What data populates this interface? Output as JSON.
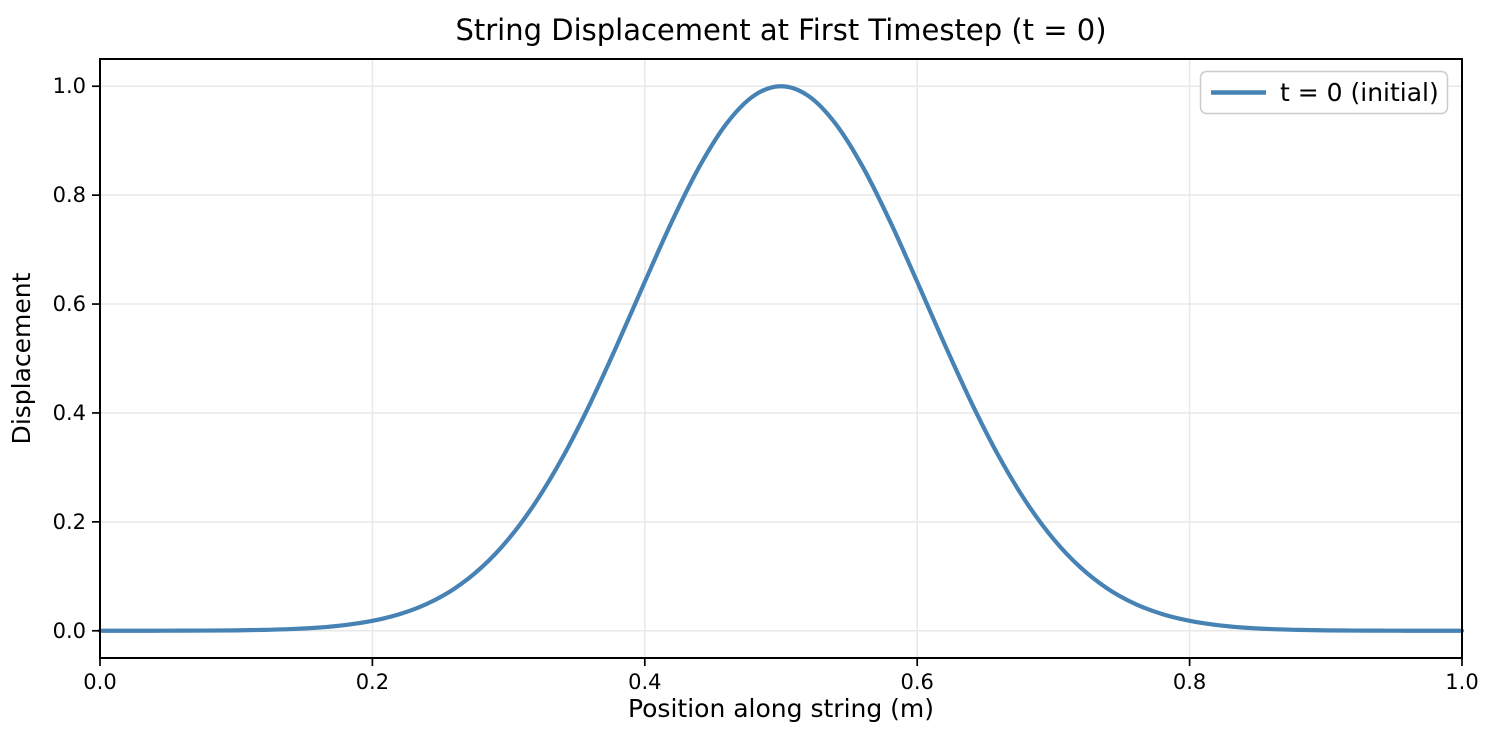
{
  "chart_data": {
    "type": "line",
    "title": "String Displacement at First Timestep (t = 0)",
    "xlabel": "Position along string (m)",
    "ylabel": "Displacement",
    "xlim": [
      0.0,
      1.0
    ],
    "ylim": [
      -0.05,
      1.05
    ],
    "xticks": [
      0.0,
      0.2,
      0.4,
      0.6,
      0.8,
      1.0
    ],
    "yticks": [
      0.0,
      0.2,
      0.4,
      0.6,
      0.8,
      1.0
    ],
    "xtick_labels": [
      "0.0",
      "0.2",
      "0.4",
      "0.6",
      "0.8",
      "1.0"
    ],
    "ytick_labels": [
      "0.0",
      "0.2",
      "0.4",
      "0.6",
      "0.8",
      "1.0"
    ],
    "grid": true,
    "legend": {
      "position": "upper-right",
      "entries": [
        {
          "label": "t = 0 (initial)",
          "color": "#4682b4"
        }
      ]
    },
    "series": [
      {
        "name": "t = 0 (initial)",
        "color": "#4682b4",
        "line_width": 2,
        "description": "Gaussian pulse centered at x=0.5, peak 1.0, sigma ~0.106",
        "x": [
          0.0,
          0.02,
          0.04,
          0.06,
          0.08,
          0.1,
          0.12,
          0.14,
          0.16,
          0.18,
          0.2,
          0.22,
          0.24,
          0.26,
          0.28,
          0.3,
          0.32,
          0.34,
          0.36,
          0.38,
          0.4,
          0.42,
          0.44,
          0.46,
          0.48,
          0.5,
          0.52,
          0.54,
          0.56,
          0.58,
          0.6,
          0.62,
          0.64,
          0.66,
          0.68,
          0.7,
          0.72,
          0.74,
          0.76,
          0.78,
          0.8,
          0.82,
          0.84,
          0.86,
          0.88,
          0.9,
          0.92,
          0.94,
          0.96,
          0.98,
          1.0
        ],
        "y": [
          0.0,
          0.0,
          0.0001,
          0.0002,
          0.0004,
          0.0008,
          0.0016,
          0.0031,
          0.0058,
          0.0105,
          0.0182,
          0.0305,
          0.0494,
          0.077,
          0.116,
          0.1686,
          0.2365,
          0.32,
          0.418,
          0.5268,
          0.6408,
          0.7522,
          0.852,
          0.9313,
          0.9824,
          1.0,
          0.9824,
          0.9313,
          0.852,
          0.7522,
          0.6408,
          0.5268,
          0.418,
          0.32,
          0.2365,
          0.1686,
          0.116,
          0.077,
          0.0494,
          0.0305,
          0.0182,
          0.0105,
          0.0058,
          0.0031,
          0.0016,
          0.0008,
          0.0004,
          0.0002,
          0.0001,
          0.0,
          0.0
        ]
      }
    ]
  },
  "colors": {
    "line": "#4682b4",
    "grid": "#e8e8e8",
    "spine": "#000000",
    "background": "#ffffff",
    "legend_border": "#cccccc"
  }
}
